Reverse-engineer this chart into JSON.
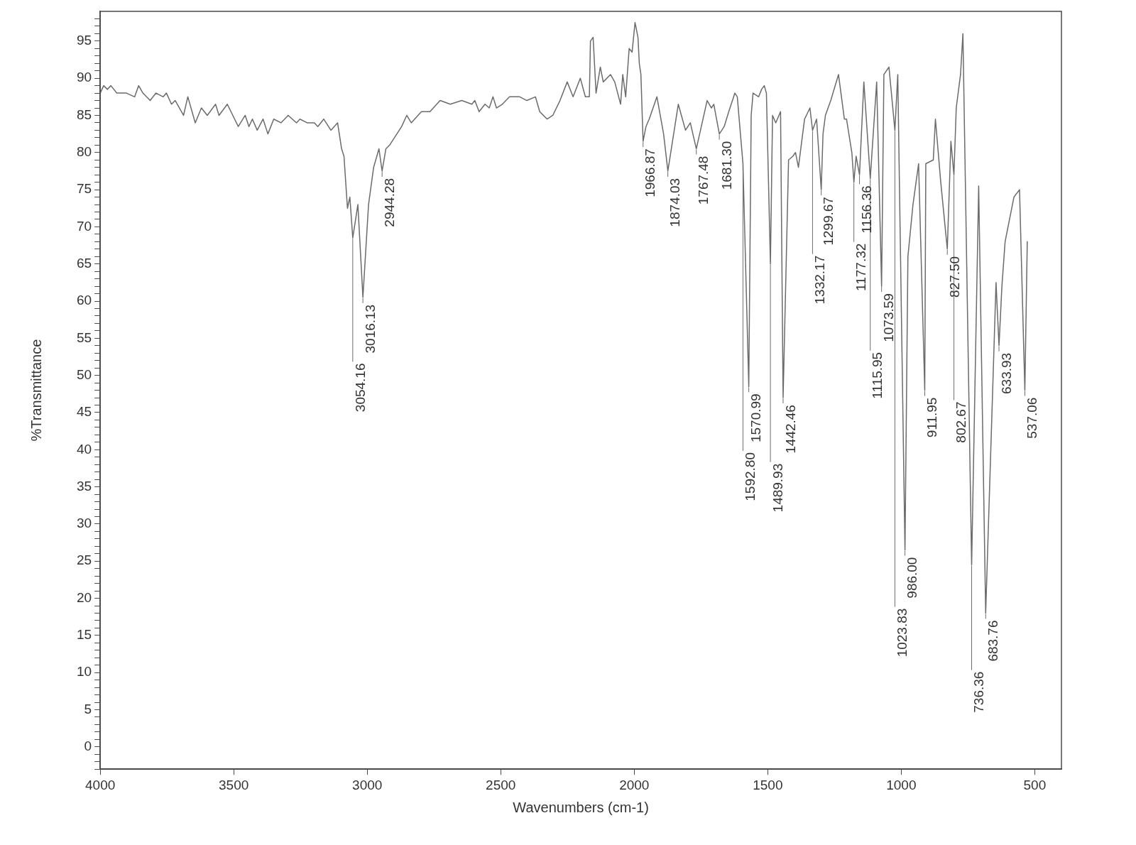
{
  "chart_data": {
    "type": "line",
    "xlabel": "Wavenumbers (cm-1)",
    "ylabel": "%Transmittance",
    "marker": "none",
    "line_style": "solid",
    "x": [
      4000,
      3987,
      3973,
      3960,
      3938,
      3902,
      3871,
      3856,
      3840,
      3813,
      3791,
      3764,
      3752,
      3733,
      3719,
      3688,
      3672,
      3644,
      3621,
      3599,
      3568,
      3555,
      3524,
      3483,
      3457,
      3443,
      3430,
      3412,
      3390,
      3372,
      3350,
      3323,
      3296,
      3265,
      3252,
      3225,
      3198,
      3185,
      3163,
      3136,
      3111,
      3096,
      3087,
      3074,
      3065,
      3054.16,
      3035,
      3016.13,
      2995,
      2976,
      2956,
      2944.28,
      2930,
      2916,
      2898,
      2871,
      2852,
      2835,
      2797,
      2765,
      2727,
      2689,
      2646,
      2608,
      2597,
      2581,
      2559,
      2543,
      2529,
      2516,
      2494,
      2467,
      2429,
      2402,
      2370,
      2354,
      2326,
      2305,
      2278,
      2251,
      2229,
      2202,
      2183,
      2168,
      2164,
      2154,
      2143,
      2127,
      2116,
      2089,
      2073,
      2051,
      2043,
      2032,
      2019,
      2008,
      1997,
      1986,
      1981,
      1975,
      1966.87,
      1956,
      1944,
      1915,
      1890,
      1874.03,
      1835,
      1808,
      1790,
      1767.48,
      1727,
      1711,
      1702,
      1681.3,
      1663,
      1646,
      1623,
      1614,
      1592.8,
      1570.99,
      1562,
      1555,
      1534,
      1523,
      1513,
      1505,
      1489.93,
      1482,
      1470,
      1452,
      1442.46,
      1422,
      1406,
      1396,
      1385,
      1371,
      1362,
      1342,
      1332.17,
      1317,
      1299.67,
      1293,
      1284,
      1264,
      1235,
      1213,
      1205,
      1185,
      1177.32,
      1169,
      1156.36,
      1140,
      1115.95,
      1092,
      1073.59,
      1065,
      1046,
      1023.83,
      1013,
      986.0,
      975,
      956,
      935,
      911.95,
      908,
      880,
      872,
      852,
      827.5,
      814,
      802.67,
      794,
      778,
      769,
      736.36,
      710,
      683.76,
      645,
      633.93,
      623,
      611,
      578,
      557,
      537.06,
      528
    ],
    "series": [
      {
        "color": "#6b6b6b",
        "values": [
          88,
          89,
          88.5,
          89,
          88,
          88,
          87.5,
          89,
          88,
          87,
          88,
          87.5,
          88,
          86.5,
          87,
          85,
          87.5,
          84,
          86,
          85,
          86.5,
          85,
          86.5,
          83.5,
          85,
          83.5,
          84.5,
          83,
          84.5,
          82.5,
          84.5,
          84,
          85,
          84,
          84.5,
          84,
          84,
          83.5,
          84.5,
          83,
          84,
          80.5,
          79.5,
          72.5,
          74,
          68.5,
          73,
          60.5,
          73,
          78,
          80.5,
          77.5,
          80.5,
          81,
          82,
          83.5,
          85,
          84,
          85.5,
          85.5,
          87,
          86.5,
          87,
          86.5,
          87,
          85.5,
          86.5,
          86,
          87.5,
          86,
          86.5,
          87.5,
          87.5,
          87,
          87.5,
          85.5,
          84.5,
          85,
          87,
          89.5,
          87.5,
          90,
          87.5,
          87.5,
          95,
          95.5,
          88,
          91.5,
          89.5,
          90.5,
          89.5,
          86.5,
          90.5,
          87.5,
          94,
          93.5,
          97.5,
          95.5,
          92,
          90.5,
          81.5,
          83.5,
          84.5,
          87.5,
          82.5,
          77.5,
          86.5,
          83,
          84,
          80.5,
          87,
          86,
          86.5,
          82.5,
          83.5,
          85.5,
          88,
          87.5,
          78.5,
          48.5,
          85,
          88,
          87.5,
          88.5,
          89,
          88,
          65,
          85,
          84,
          85.5,
          47,
          79,
          79.5,
          80,
          78,
          82,
          84.5,
          86,
          83,
          84.5,
          75,
          82.5,
          85,
          87,
          90.5,
          84.5,
          84.5,
          80,
          76,
          79.5,
          77,
          89.5,
          76.5,
          89.5,
          62,
          90.5,
          91.5,
          83,
          90.5,
          26.5,
          66,
          73,
          78.5,
          48,
          78.5,
          79,
          84.5,
          76,
          67,
          81.5,
          77,
          86,
          90.5,
          96,
          24.5,
          75.5,
          18,
          62.5,
          54,
          62,
          68,
          74,
          75,
          48,
          68
        ]
      }
    ],
    "xlim": [
      4000,
      400
    ],
    "xticks": [
      4000,
      3500,
      3000,
      2500,
      2000,
      1500,
      1000,
      500
    ],
    "ylim": [
      -3,
      99
    ],
    "yticks": [
      {
        "value": -3,
        "label": null
      },
      {
        "value": -2,
        "label": null
      },
      {
        "value": -1,
        "label": null
      },
      0,
      {
        "value": 1,
        "label": null
      },
      {
        "value": 2,
        "label": null
      },
      {
        "value": 3,
        "label": null
      },
      {
        "value": 4,
        "label": null
      },
      5,
      {
        "value": 6,
        "label": null
      },
      {
        "value": 7,
        "label": null
      },
      {
        "value": 8,
        "label": null
      },
      {
        "value": 9,
        "label": null
      },
      10,
      {
        "value": 11,
        "label": null
      },
      {
        "value": 12,
        "label": null
      },
      {
        "value": 13,
        "label": null
      },
      {
        "value": 14,
        "label": null
      },
      15,
      {
        "value": 16,
        "label": null
      },
      {
        "value": 17,
        "label": null
      },
      {
        "value": 18,
        "label": null
      },
      {
        "value": 19,
        "label": null
      },
      20,
      {
        "value": 21,
        "label": null
      },
      {
        "value": 22,
        "label": null
      },
      {
        "value": 23,
        "label": null
      },
      {
        "value": 24,
        "label": null
      },
      25,
      {
        "value": 26,
        "label": null
      },
      {
        "value": 27,
        "label": null
      },
      {
        "value": 28,
        "label": null
      },
      {
        "value": 29,
        "label": null
      },
      30,
      {
        "value": 31,
        "label": null
      },
      {
        "value": 32,
        "label": null
      },
      {
        "value": 33,
        "label": null
      },
      {
        "value": 34,
        "label": null
      },
      35,
      {
        "value": 36,
        "label": null
      },
      {
        "value": 37,
        "label": null
      },
      {
        "value": 38,
        "label": null
      },
      {
        "value": 39,
        "label": null
      },
      40,
      {
        "value": 41,
        "label": null
      },
      {
        "value": 42,
        "label": null
      },
      {
        "value": 43,
        "label": null
      },
      {
        "value": 44,
        "label": null
      },
      45,
      {
        "value": 46,
        "label": null
      },
      {
        "value": 47,
        "label": null
      },
      {
        "value": 48,
        "label": null
      },
      {
        "value": 49,
        "label": null
      },
      50,
      {
        "value": 51,
        "label": null
      },
      {
        "value": 52,
        "label": null
      },
      {
        "value": 53,
        "label": null
      },
      {
        "value": 54,
        "label": null
      },
      55,
      {
        "value": 56,
        "label": null
      },
      {
        "value": 57,
        "label": null
      },
      {
        "value": 58,
        "label": null
      },
      {
        "value": 59,
        "label": null
      },
      60,
      {
        "value": 61,
        "label": null
      },
      {
        "value": 62,
        "label": null
      },
      {
        "value": 63,
        "label": null
      },
      {
        "value": 64,
        "label": null
      },
      65,
      {
        "value": 66,
        "label": null
      },
      {
        "value": 67,
        "label": null
      },
      {
        "value": 68,
        "label": null
      },
      {
        "value": 69,
        "label": null
      },
      70,
      {
        "value": 71,
        "label": null
      },
      {
        "value": 72,
        "label": null
      },
      {
        "value": 73,
        "label": null
      },
      {
        "value": 74,
        "label": null
      },
      75,
      {
        "value": 76,
        "label": null
      },
      {
        "value": 77,
        "label": null
      },
      {
        "value": 78,
        "label": null
      },
      {
        "value": 79,
        "label": null
      },
      80,
      {
        "value": 81,
        "label": null
      },
      {
        "value": 82,
        "label": null
      },
      {
        "value": 83,
        "label": null
      },
      {
        "value": 84,
        "label": null
      },
      85,
      {
        "value": 86,
        "label": null
      },
      {
        "value": 87,
        "label": null
      },
      {
        "value": 88,
        "label": null
      },
      {
        "value": 89,
        "label": null
      },
      90,
      {
        "value": 91,
        "label": null
      },
      {
        "value": 92,
        "label": null
      },
      {
        "value": 93,
        "label": null
      },
      {
        "value": 94,
        "label": null
      },
      95,
      {
        "value": 96,
        "label": null
      },
      {
        "value": 97,
        "label": null
      },
      {
        "value": 98,
        "label": null
      }
    ],
    "annotations": [
      {
        "text": "3054.16",
        "x": 3054.16,
        "y": 68.5
      },
      {
        "text": "3016.13",
        "x": 3016.13,
        "y": 60.5
      },
      {
        "text": "2944.28",
        "x": 2944.28,
        "y": 77.5
      },
      {
        "text": "1966.87",
        "x": 1966.87,
        "y": 81.5
      },
      {
        "text": "1874.03",
        "x": 1874.03,
        "y": 77.5
      },
      {
        "text": "1767.48",
        "x": 1767.48,
        "y": 80.5
      },
      {
        "text": "1681.30",
        "x": 1681.3,
        "y": 82.5
      },
      {
        "text": "1592.80",
        "x": 1592.8,
        "y": 78.5
      },
      {
        "text": "1570.99",
        "x": 1570.99,
        "y": 48.5
      },
      {
        "text": "1489.93",
        "x": 1489.93,
        "y": 65
      },
      {
        "text": "1442.46",
        "x": 1442.46,
        "y": 47
      },
      {
        "text": "1332.17",
        "x": 1332.17,
        "y": 83
      },
      {
        "text": "1299.67",
        "x": 1299.67,
        "y": 75
      },
      {
        "text": "1177.32",
        "x": 1177.32,
        "y": 76
      },
      {
        "text": "1156.36",
        "x": 1156.36,
        "y": 77
      },
      {
        "text": "1115.95",
        "x": 1115.95,
        "y": 76.5
      },
      {
        "text": "1073.59",
        "x": 1073.59,
        "y": 62
      },
      {
        "text": "1023.83",
        "x": 1023.83,
        "y": 83
      },
      {
        "text": "986.00",
        "x": 986.0,
        "y": 26.5
      },
      {
        "text": "911.95",
        "x": 911.95,
        "y": 48
      },
      {
        "text": "827.50",
        "x": 827.5,
        "y": 67
      },
      {
        "text": "802.67",
        "x": 802.67,
        "y": 77
      },
      {
        "text": "736.36",
        "x": 736.36,
        "y": 24.5
      },
      {
        "text": "683.76",
        "x": 683.76,
        "y": 18
      },
      {
        "text": "633.93",
        "x": 633.93,
        "y": 54
      },
      {
        "text": "537.06",
        "x": 537.06,
        "y": 48
      }
    ]
  }
}
